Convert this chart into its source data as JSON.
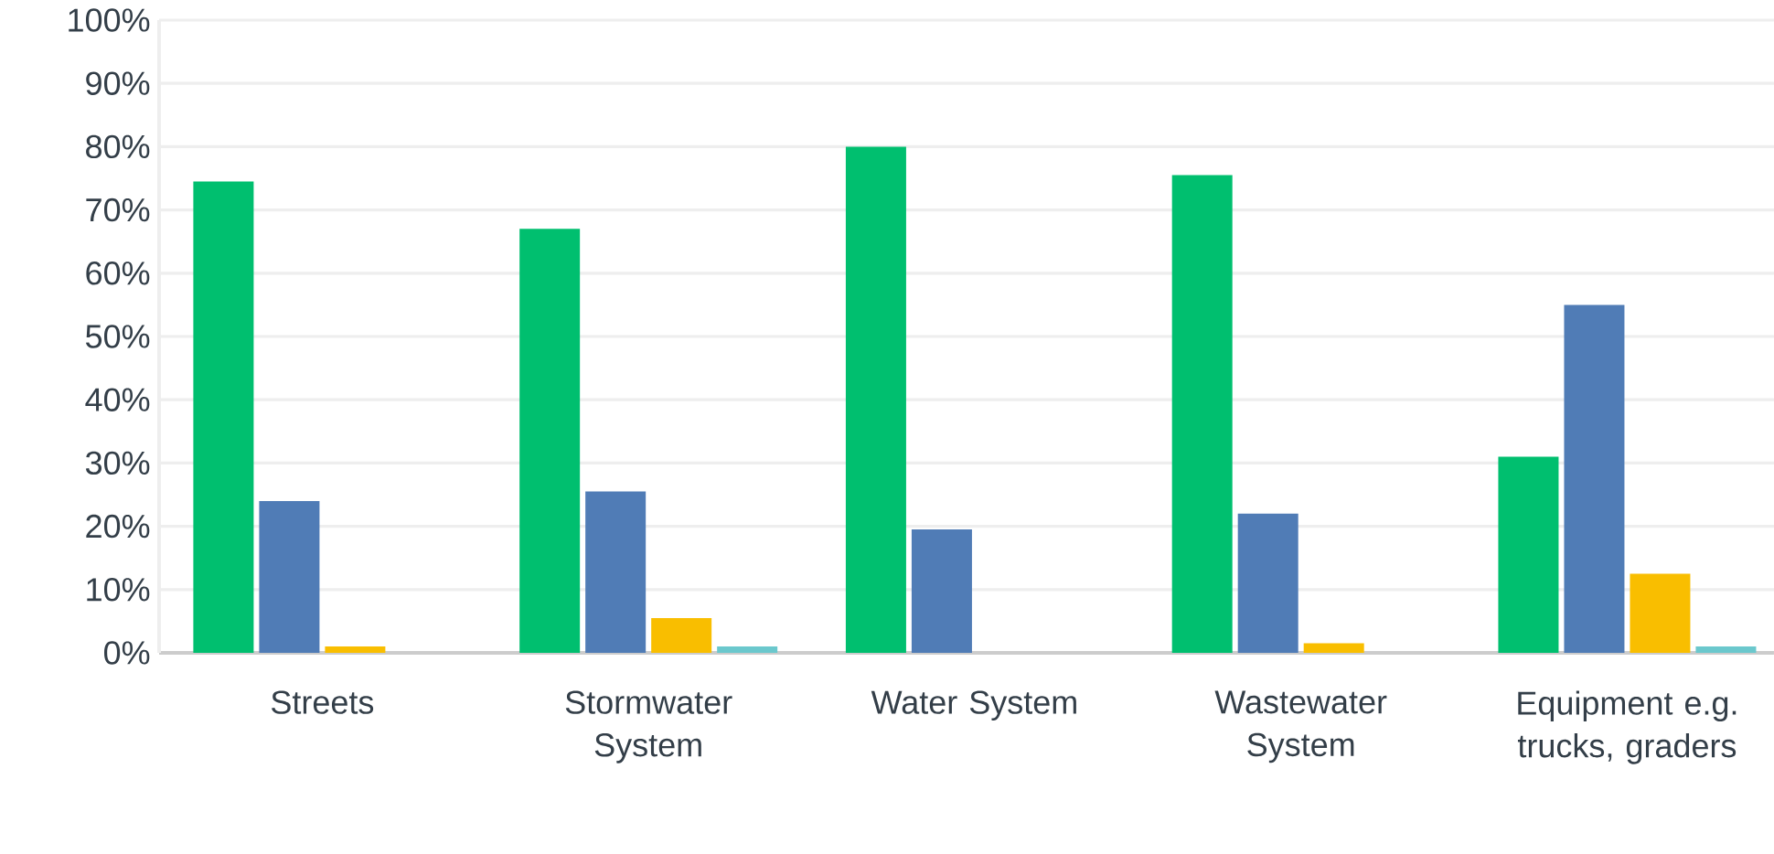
{
  "chart_data": {
    "type": "bar",
    "categories": [
      "Streets",
      "Stormwater System",
      "Water System",
      "Wastewater System",
      "Equipment e.g. trucks, graders"
    ],
    "series": [
      {
        "color": "#00bf6f",
        "values": [
          74.5,
          67,
          80,
          75.5,
          31
        ]
      },
      {
        "color": "#507cb6",
        "values": [
          24,
          25.5,
          19.5,
          22,
          55
        ]
      },
      {
        "color": "#f9be00",
        "values": [
          1,
          5.5,
          0,
          1.5,
          12.5
        ]
      },
      {
        "color": "#6bc8cd",
        "values": [
          0,
          1,
          0,
          0,
          1
        ]
      }
    ],
    "ylim": [
      0,
      100
    ],
    "yticks": [
      {
        "value": 0,
        "label": "0%"
      },
      {
        "value": 10,
        "label": "10%"
      },
      {
        "value": 20,
        "label": "20%"
      },
      {
        "value": 30,
        "label": "30%"
      },
      {
        "value": 40,
        "label": "40%"
      },
      {
        "value": 50,
        "label": "50%"
      },
      {
        "value": 60,
        "label": "60%"
      },
      {
        "value": 70,
        "label": "70%"
      },
      {
        "value": 80,
        "label": "80%"
      },
      {
        "value": 90,
        "label": "90%"
      },
      {
        "value": 100,
        "label": "100%"
      }
    ],
    "grid": "y"
  }
}
